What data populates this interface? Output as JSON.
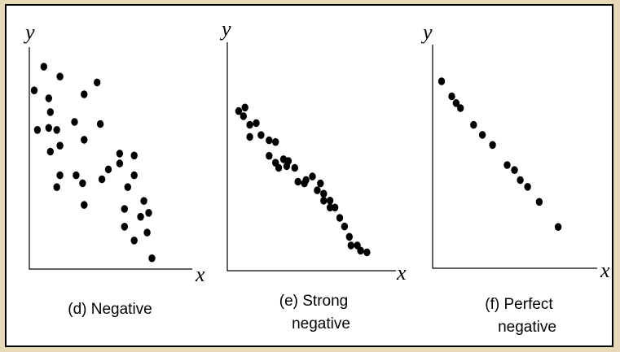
{
  "chart_data": [
    {
      "type": "scatter",
      "caption": [
        "(d) Negative"
      ],
      "xlabel": "x",
      "ylabel": "y",
      "xlim": [
        0,
        100
      ],
      "ylim": [
        0,
        100
      ],
      "points": [
        [
          2,
          88
        ],
        [
          8,
          100
        ],
        [
          12,
          77
        ],
        [
          4,
          68
        ],
        [
          11,
          84
        ],
        [
          18,
          95
        ],
        [
          11,
          69
        ],
        [
          16,
          68
        ],
        [
          12,
          57
        ],
        [
          18,
          60
        ],
        [
          18,
          45
        ],
        [
          16,
          39
        ],
        [
          27,
          72
        ],
        [
          33,
          86
        ],
        [
          33,
          63
        ],
        [
          28,
          45
        ],
        [
          32,
          41
        ],
        [
          33,
          30
        ],
        [
          41,
          92
        ],
        [
          43,
          71
        ],
        [
          44,
          43
        ],
        [
          48,
          48
        ],
        [
          55,
          56
        ],
        [
          55,
          51
        ],
        [
          64,
          55
        ],
        [
          64,
          45
        ],
        [
          60,
          39
        ],
        [
          58,
          28
        ],
        [
          58,
          19
        ],
        [
          70,
          32
        ],
        [
          64,
          12
        ],
        [
          68,
          24
        ],
        [
          73,
          26
        ],
        [
          72,
          16
        ],
        [
          75,
          3
        ]
      ]
    },
    {
      "type": "scatter",
      "caption": [
        "(e) Strong",
        "negative"
      ],
      "xlabel": "x",
      "ylabel": "y",
      "xlim": [
        0,
        100
      ],
      "ylim": [
        0,
        100
      ],
      "points": [
        [
          5,
          87
        ],
        [
          8,
          84
        ],
        [
          9,
          89
        ],
        [
          12,
          79
        ],
        [
          16,
          80
        ],
        [
          12,
          72
        ],
        [
          19,
          73
        ],
        [
          24,
          70
        ],
        [
          28,
          69
        ],
        [
          24,
          61
        ],
        [
          28,
          57
        ],
        [
          30,
          54
        ],
        [
          33,
          59
        ],
        [
          36,
          58
        ],
        [
          35,
          55
        ],
        [
          40,
          54
        ],
        [
          42,
          46
        ],
        [
          46,
          45
        ],
        [
          47,
          47
        ],
        [
          51,
          49
        ],
        [
          56,
          45
        ],
        [
          54,
          41
        ],
        [
          58,
          39
        ],
        [
          58,
          35
        ],
        [
          62,
          35
        ],
        [
          62,
          31
        ],
        [
          65,
          31
        ],
        [
          68,
          25
        ],
        [
          71,
          20
        ],
        [
          74,
          14
        ],
        [
          75,
          9
        ],
        [
          79,
          9
        ],
        [
          81,
          6
        ],
        [
          85,
          5
        ]
      ]
    },
    {
      "type": "scatter",
      "caption": [
        "(f) Perfect",
        "negative"
      ],
      "xlabel": "x",
      "ylabel": "y",
      "xlim": [
        0,
        100
      ],
      "ylim": [
        0,
        100
      ],
      "points": [
        [
          5,
          100
        ],
        [
          12,
          91
        ],
        [
          15,
          87
        ],
        [
          18,
          84
        ],
        [
          27,
          74
        ],
        [
          33,
          68
        ],
        [
          40,
          62
        ],
        [
          50,
          50
        ],
        [
          55,
          47
        ],
        [
          59,
          41
        ],
        [
          64,
          37
        ],
        [
          72,
          28
        ],
        [
          85,
          13
        ]
      ]
    }
  ]
}
